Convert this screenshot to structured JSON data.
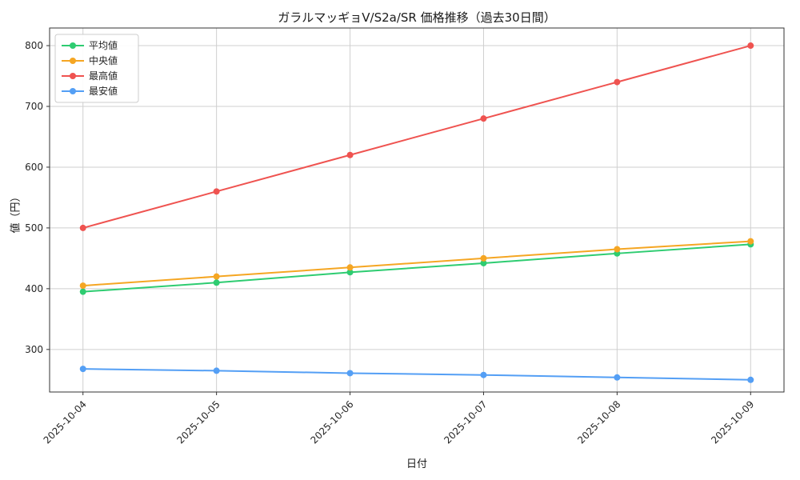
{
  "chart_data": {
    "type": "line",
    "title": "ガラルマッギョV/S2a/SR 価格推移（過去30日間）",
    "xlabel": "日付",
    "ylabel": "値（円）",
    "categories": [
      "2025-10-04",
      "2025-10-05",
      "2025-10-06",
      "2025-10-07",
      "2025-10-08",
      "2025-10-09"
    ],
    "series": [
      {
        "name": "平均値",
        "color": "#2ecc71",
        "values": [
          395,
          410,
          427,
          442,
          458,
          473
        ]
      },
      {
        "name": "中央値",
        "color": "#f5a623",
        "values": [
          405,
          420,
          435,
          450,
          465,
          478
        ]
      },
      {
        "name": "最高値",
        "color": "#ef5350",
        "values": [
          500,
          560,
          620,
          680,
          740,
          800
        ]
      },
      {
        "name": "最安値",
        "color": "#549ff5",
        "values": [
          268,
          265,
          261,
          258,
          254,
          250
        ]
      }
    ],
    "yticks": [
      300,
      400,
      500,
      600,
      700,
      800
    ],
    "ylim": [
      230,
      829
    ],
    "grid": true,
    "legend_position": "upper left",
    "grid_color": "#cfcfcf",
    "marker_radius": 4,
    "line_width": 2
  }
}
